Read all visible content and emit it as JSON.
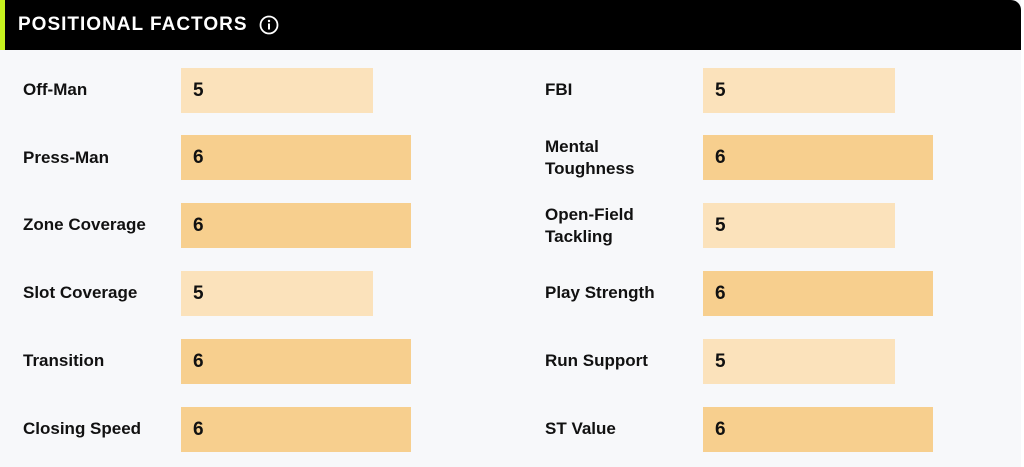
{
  "header": {
    "title": "POSITIONAL FACTORS",
    "info_icon": "info-icon"
  },
  "colors": {
    "header_bg": "#000000",
    "accent": "#c6f31e",
    "bar_score_5": "#fbe2bb",
    "bar_score_6": "#f7cf8e",
    "panel_bg": "#f7f8fa"
  },
  "left_factors": [
    {
      "label": "Off-Man",
      "value": "5"
    },
    {
      "label": "Press-Man",
      "value": "6"
    },
    {
      "label": "Zone Coverage",
      "value": "6"
    },
    {
      "label": "Slot Coverage",
      "value": "5"
    },
    {
      "label": "Transition",
      "value": "6"
    },
    {
      "label": "Closing Speed",
      "value": "6"
    }
  ],
  "right_factors": [
    {
      "label": "FBI",
      "value": "5"
    },
    {
      "label_line1": "Mental",
      "label_line2": "Toughness",
      "value": "6"
    },
    {
      "label_line1": "Open-Field",
      "label_line2": "Tackling",
      "value": "5"
    },
    {
      "label": "Play Strength",
      "value": "6"
    },
    {
      "label": "Run Support",
      "value": "5"
    },
    {
      "label": "ST Value",
      "value": "6"
    }
  ]
}
